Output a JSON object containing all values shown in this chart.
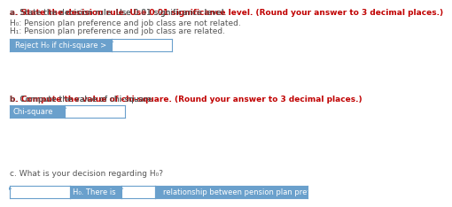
{
  "bg_color": "#ffffff",
  "title_a_normal": "a. State the decision rule. Use 0.01 significance level.",
  "title_a_bold": "(Round your answer to 3 decimal places.)",
  "h0_text": "H₀: Pension plan preference and job class are not related.",
  "h1_text": "H₁: Pension plan preference and job class are related.",
  "reject_label": "Reject H₀ if chi-square >",
  "reject_label_color": "#ffffff",
  "reject_box_bg": "#6aa0cc",
  "input_box_bg": "#ffffff",
  "input_box_border": "#6aa0cc",
  "title_b_normal": "b. Compute the value of chi-square.",
  "title_b_bold": "(Round your answer to 3 decimal places.)",
  "chisq_label": "Chi-square",
  "title_c": "c. What is your decision regarding H₀?",
  "bottom_mid_text": "H₀. There is",
  "bottom_right_text": "relationship between pension plan preference and job class.",
  "normal_color": "#555555",
  "bold_color": "#c00000",
  "font_size": 6.5
}
